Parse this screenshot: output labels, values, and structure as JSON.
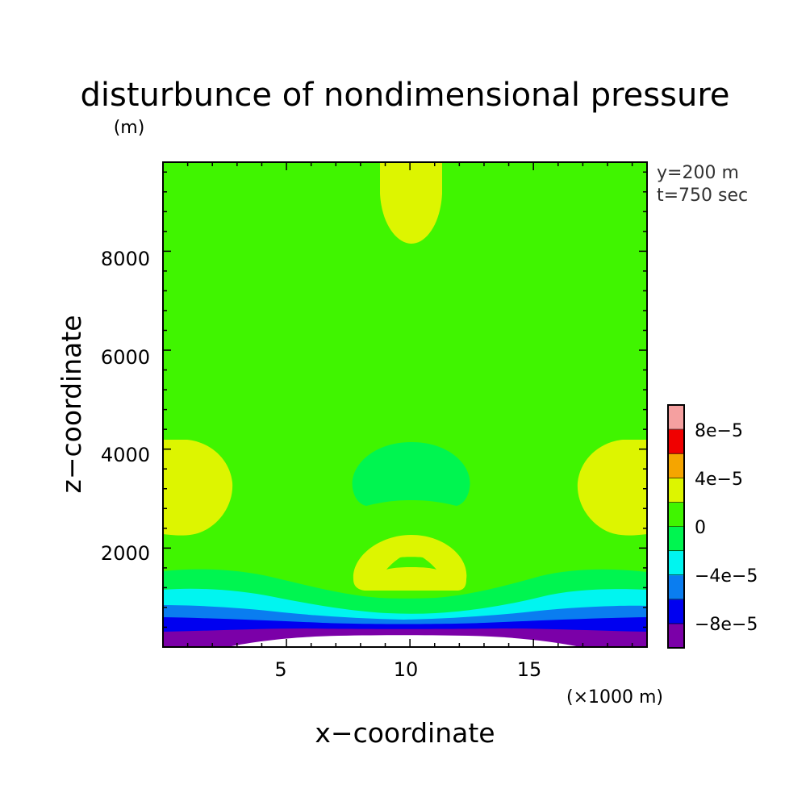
{
  "chart_data": {
    "type": "heatmap",
    "title": "disturbunce of nondimensional pressure",
    "ylabel": "z−coordinate",
    "yunit": "(m)",
    "xlabel": "x−coordinate",
    "xunit": "(×1000 m)",
    "annotations": [
      "y=200 m",
      "t=750 sec"
    ],
    "xlim": [
      0,
      19.6
    ],
    "ylim": [
      0,
      9800
    ],
    "x_ticks": [
      {
        "value": 5,
        "label": "5"
      },
      {
        "value": 10,
        "label": "10"
      },
      {
        "value": 15,
        "label": "15"
      }
    ],
    "y_ticks": [
      {
        "value": 2000,
        "label": "2000"
      },
      {
        "value": 4000,
        "label": "4000"
      },
      {
        "value": 6000,
        "label": "6000"
      },
      {
        "value": 8000,
        "label": "8000"
      }
    ],
    "colorbar": {
      "levels": [
        -0.0001,
        -8e-05,
        -6e-05,
        -4e-05,
        -2e-05,
        0,
        2e-05,
        4e-05,
        6e-05,
        8e-05,
        0.0001
      ],
      "colors": [
        "#7B00A8",
        "#0000F0",
        "#0A7DF0",
        "#00F5F0",
        "#00F550",
        "#40F500",
        "#DDF500",
        "#F5A500",
        "#F00000",
        "#F5A0A0"
      ],
      "tick_labels": [
        {
          "value": -8e-05,
          "label": "−8e−5"
        },
        {
          "value": -4e-05,
          "label": "−4e−5"
        },
        {
          "value": 0,
          "label": "0"
        },
        {
          "value": 4e-05,
          "label": "4e−5"
        },
        {
          "value": 8e-05,
          "label": "8e−5"
        }
      ]
    },
    "field": {
      "background_level": "0 to 2e−5",
      "regions": [
        {
          "name": "top-center-high",
          "range": "2e−5 to 4e−5",
          "x_center": 10,
          "z_range": [
            8300,
            9800
          ]
        },
        {
          "name": "left-edge-high",
          "range": "2e−5 to 4e−5",
          "x_range": [
            0,
            2.8
          ],
          "z_range": [
            2300,
            4300
          ]
        },
        {
          "name": "right-edge-high",
          "range": "2e−5 to 4e−5",
          "x_range": [
            16.8,
            19.6
          ],
          "z_range": [
            2300,
            4300
          ]
        },
        {
          "name": "center-low",
          "range": "−2e−5 to 0",
          "x_range": [
            7.8,
            12.4
          ],
          "z_range": [
            2900,
            4200
          ]
        },
        {
          "name": "lower-center-high",
          "range": "2e−5 to 4e−5",
          "x_range": [
            7.9,
            12.3
          ],
          "z_range": [
            1200,
            2050
          ]
        },
        {
          "name": "bottom-layers",
          "range": "−1e−4 to 0",
          "z_range": [
            0,
            1600
          ]
        }
      ]
    }
  }
}
